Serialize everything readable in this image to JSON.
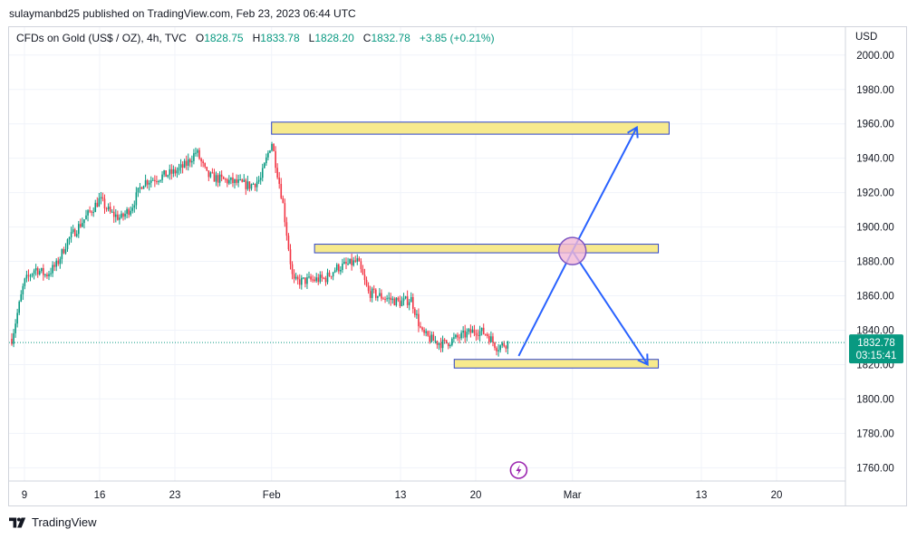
{
  "header": {
    "publish_line": "sulaymanbd25 published on TradingView.com, Feb 23, 2023 06:44 UTC"
  },
  "legend": {
    "symbol": "CFDs on Gold (US$ / OZ), 4h, TVC",
    "open_label": "O",
    "open": "1828.75",
    "high_label": "H",
    "high": "1833.78",
    "low_label": "L",
    "low": "1828.20",
    "close_label": "C",
    "close": "1832.78",
    "change": "+3.85 (+0.21%)"
  },
  "price_axis": {
    "currency": "USD",
    "last_price": "1832.78",
    "countdown": "03:15:41"
  },
  "footer": {
    "brand": "TradingView"
  },
  "icons": {
    "logo": "tradingview-logo-icon",
    "alert": "lightning-icon"
  },
  "colors": {
    "up": "#089981",
    "down": "#f23645",
    "zone_fill": "#f7ea8d",
    "zone_border": "#2c43c8",
    "projection": "#2962ff",
    "circle_fill": "#f2b8d6",
    "circle_border": "#7e57c2",
    "axis_text": "#131722",
    "price_label_bg": "#089981"
  },
  "chart_data": {
    "type": "candlestick",
    "title": "CFDs on Gold (US$ / OZ), 4h, TVC",
    "y_axis": {
      "label": "USD",
      "ticks": [
        1760,
        1780,
        1800,
        1820,
        1840,
        1860,
        1880,
        1900,
        1920,
        1940,
        1960,
        1980,
        2000
      ],
      "ylim": [
        1751,
        2014
      ]
    },
    "x_axis": {
      "tick_labels": [
        "9",
        "16",
        "23",
        "Feb",
        "13",
        "20",
        "Mar",
        "13",
        "20"
      ],
      "tick_dates": [
        "2023-01-09",
        "2023-01-16",
        "2023-01-23",
        "2023-02-01",
        "2023-02-13",
        "2023-02-20",
        "2023-03-01",
        "2023-03-13",
        "2023-03-20"
      ]
    },
    "anchors": [
      {
        "date": "2023-01-09",
        "price": 1868
      },
      {
        "date": "2023-01-10",
        "price": 1876
      },
      {
        "date": "2023-01-11",
        "price": 1872
      },
      {
        "date": "2023-01-12",
        "price": 1878
      },
      {
        "date": "2023-01-13",
        "price": 1892
      },
      {
        "date": "2023-01-16",
        "price": 1916
      },
      {
        "date": "2023-01-17",
        "price": 1908
      },
      {
        "date": "2023-01-18",
        "price": 1905
      },
      {
        "date": "2023-01-19",
        "price": 1912
      },
      {
        "date": "2023-01-20",
        "price": 1926
      },
      {
        "date": "2023-01-23",
        "price": 1932
      },
      {
        "date": "2023-01-24",
        "price": 1936
      },
      {
        "date": "2023-01-25",
        "price": 1944
      },
      {
        "date": "2023-01-26",
        "price": 1930
      },
      {
        "date": "2023-01-27",
        "price": 1928
      },
      {
        "date": "2023-01-30",
        "price": 1924
      },
      {
        "date": "2023-01-31",
        "price": 1928
      },
      {
        "date": "2023-02-01",
        "price": 1950
      },
      {
        "date": "2023-02-02",
        "price": 1916
      },
      {
        "date": "2023-02-03",
        "price": 1868
      },
      {
        "date": "2023-02-06",
        "price": 1870
      },
      {
        "date": "2023-02-07",
        "price": 1876
      },
      {
        "date": "2023-02-08",
        "price": 1878
      },
      {
        "date": "2023-02-09",
        "price": 1880
      },
      {
        "date": "2023-02-10",
        "price": 1862
      },
      {
        "date": "2023-02-13",
        "price": 1856
      },
      {
        "date": "2023-02-14",
        "price": 1858
      },
      {
        "date": "2023-02-15",
        "price": 1838
      },
      {
        "date": "2023-02-16",
        "price": 1834
      },
      {
        "date": "2023-02-17",
        "price": 1832
      },
      {
        "date": "2023-02-20",
        "price": 1840
      },
      {
        "date": "2023-02-21",
        "price": 1838
      },
      {
        "date": "2023-02-22",
        "price": 1830
      },
      {
        "date": "2023-02-23",
        "price": 1832.78
      }
    ],
    "zones": [
      {
        "from_date": "2023-02-01",
        "to_date": "2023-03-10",
        "high": 1961,
        "low": 1954
      },
      {
        "from_date": "2023-02-05",
        "to_date": "2023-03-09",
        "high": 1890,
        "low": 1885
      },
      {
        "from_date": "2023-02-18",
        "to_date": "2023-03-09",
        "high": 1823,
        "low": 1818
      }
    ],
    "projection_path": [
      {
        "date": "2023-02-24",
        "price": 1825
      },
      {
        "date": "2023-03-01",
        "price": 1886
      },
      {
        "date": "2023-03-07",
        "price": 1958
      }
    ],
    "projection_path_2": [
      {
        "date": "2023-03-01",
        "price": 1886
      },
      {
        "date": "2023-03-08",
        "price": 1820
      }
    ],
    "marker": {
      "date": "2023-03-01",
      "price": 1886
    },
    "last_price": 1832.78
  }
}
